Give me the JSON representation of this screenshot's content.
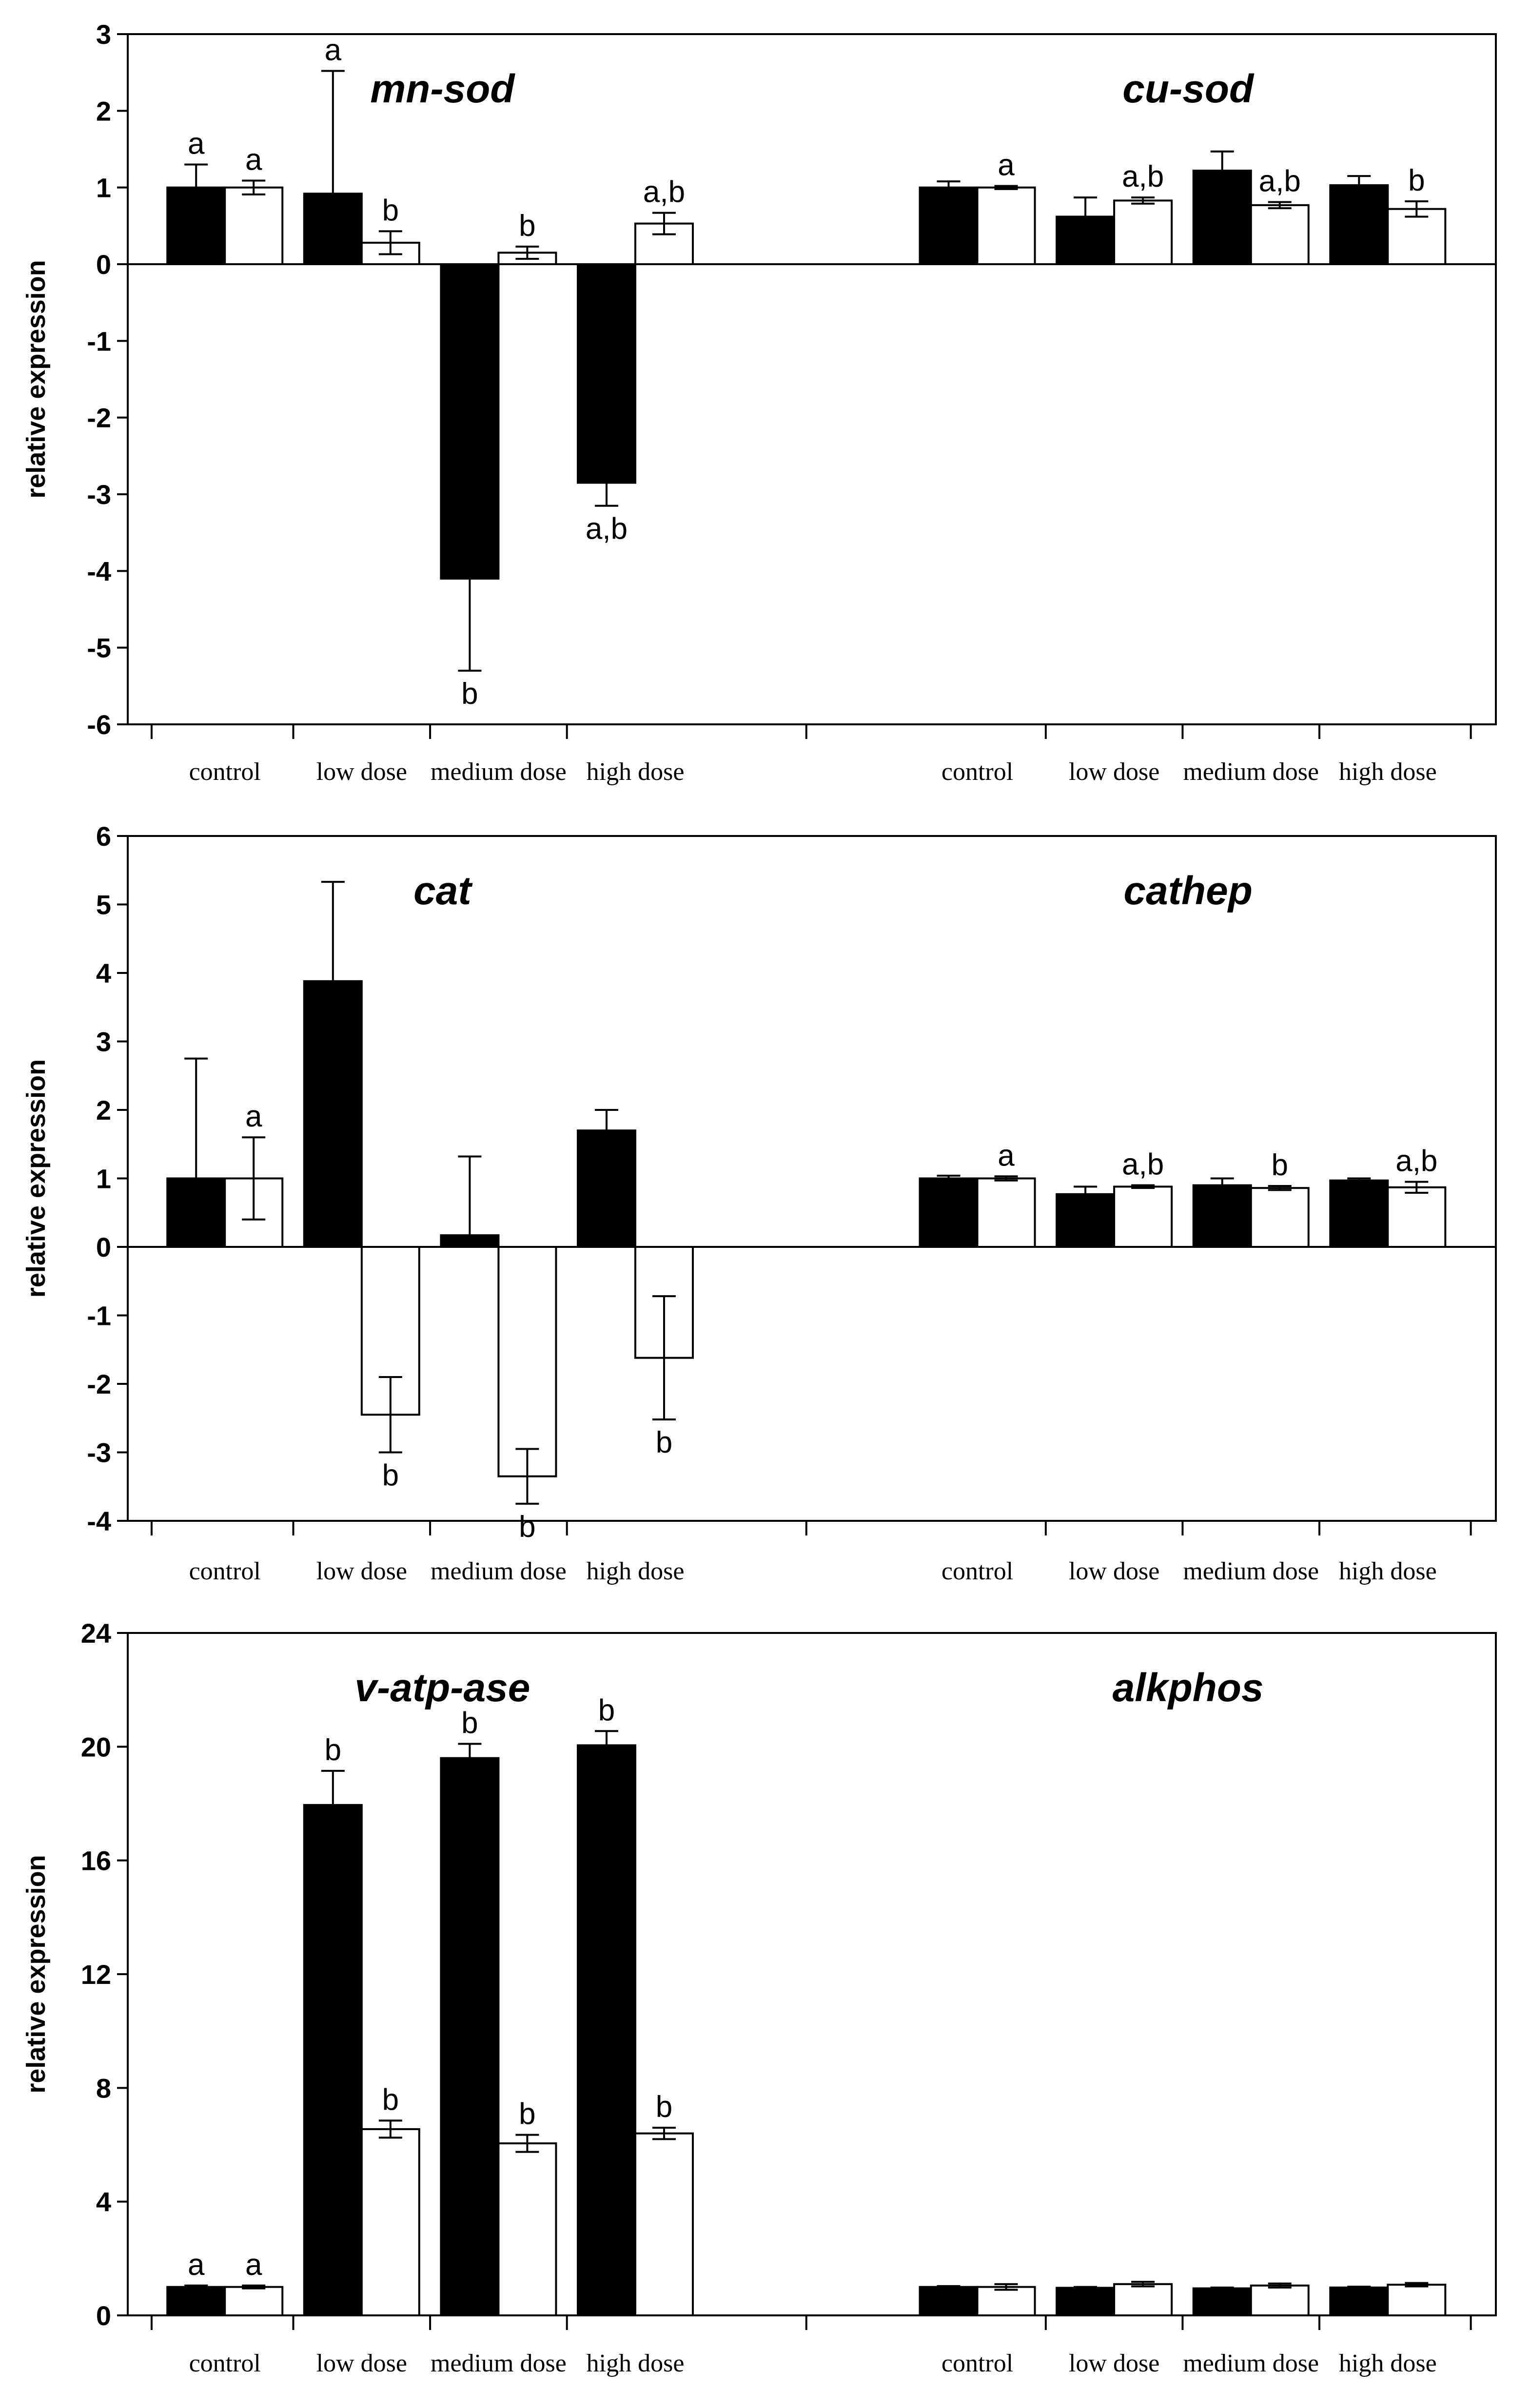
{
  "colors": {
    "filled": "#000000",
    "open": "#ffffff",
    "axis": "#000000",
    "background": "#ffffff"
  },
  "chart_data": [
    {
      "type": "bar",
      "ylabel": "relative expression",
      "ylim": [
        -6,
        3
      ],
      "yticks": [
        3,
        2,
        1,
        0,
        -1,
        -2,
        -3,
        -4,
        -5,
        -6
      ],
      "groups": [
        {
          "gene": "mn-sod",
          "categories": [
            "control",
            "low dose",
            "medium dose",
            "high dose"
          ],
          "series": [
            {
              "name": "filled",
              "values": [
                1.0,
                0.92,
                -4.1,
                -2.85
              ],
              "errors": [
                0.3,
                1.6,
                1.2,
                0.3
              ],
              "labels": [
                "a",
                "a",
                "b",
                "a,b"
              ]
            },
            {
              "name": "open",
              "values": [
                1.0,
                0.28,
                0.15,
                0.53
              ],
              "errors": [
                0.09,
                0.15,
                0.08,
                0.14
              ],
              "labels": [
                "a",
                "b",
                "b",
                "a,b"
              ]
            }
          ]
        },
        {
          "gene": "cu-sod",
          "categories": [
            "control",
            "low dose",
            "medium dose",
            "high dose"
          ],
          "series": [
            {
              "name": "filled",
              "values": [
                1.0,
                0.62,
                1.22,
                1.03
              ],
              "errors": [
                0.08,
                0.25,
                0.25,
                0.12
              ],
              "labels": [
                "",
                "",
                "",
                ""
              ]
            },
            {
              "name": "open",
              "values": [
                1.0,
                0.83,
                0.77,
                0.72
              ],
              "errors": [
                0.02,
                0.04,
                0.04,
                0.1
              ],
              "labels": [
                "a",
                "a,b",
                "a,b",
                "b"
              ]
            }
          ]
        }
      ]
    },
    {
      "type": "bar",
      "ylabel": "relative expression",
      "ylim": [
        -4,
        6
      ],
      "yticks": [
        6,
        5,
        4,
        3,
        2,
        1,
        0,
        -1,
        -2,
        -3,
        -4
      ],
      "groups": [
        {
          "gene": "cat",
          "categories": [
            "control",
            "low dose",
            "medium dose",
            "high dose"
          ],
          "series": [
            {
              "name": "filled",
              "values": [
                1.0,
                3.88,
                0.17,
                1.7
              ],
              "errors": [
                1.75,
                1.45,
                1.15,
                0.3
              ],
              "labels": [
                "",
                "",
                "",
                ""
              ]
            },
            {
              "name": "open",
              "values": [
                1.0,
                -2.45,
                -3.35,
                -1.62
              ],
              "errors": [
                0.6,
                0.55,
                0.4,
                0.9
              ],
              "labels": [
                "a",
                "b",
                "b",
                "b"
              ]
            }
          ]
        },
        {
          "gene": "cathep",
          "categories": [
            "control",
            "low dose",
            "medium dose",
            "high dose"
          ],
          "series": [
            {
              "name": "filled",
              "values": [
                1.0,
                0.77,
                0.9,
                0.97
              ],
              "errors": [
                0.04,
                0.11,
                0.1,
                0.03
              ],
              "labels": [
                "",
                "",
                "",
                ""
              ]
            },
            {
              "name": "open",
              "values": [
                1.0,
                0.88,
                0.86,
                0.87
              ],
              "errors": [
                0.03,
                0.02,
                0.03,
                0.08
              ],
              "labels": [
                "a",
                "a,b",
                "b",
                "a,b"
              ]
            }
          ]
        }
      ]
    },
    {
      "type": "bar",
      "ylabel": "relative expression",
      "ylim": [
        0,
        24
      ],
      "yticks": [
        24,
        20,
        16,
        12,
        8,
        4,
        0
      ],
      "groups": [
        {
          "gene": "v-atp-ase",
          "categories": [
            "control",
            "low dose",
            "medium dose",
            "high dose"
          ],
          "series": [
            {
              "name": "filled",
              "values": [
                1.0,
                17.95,
                19.6,
                20.05
              ],
              "errors": [
                0.05,
                1.2,
                0.5,
                0.5
              ],
              "labels": [
                "a",
                "b",
                "b",
                "b"
              ]
            },
            {
              "name": "open",
              "values": [
                1.0,
                6.55,
                6.05,
                6.4
              ],
              "errors": [
                0.05,
                0.3,
                0.3,
                0.2
              ],
              "labels": [
                "a",
                "b",
                "b",
                "b"
              ]
            }
          ]
        },
        {
          "gene": "alkphos",
          "categories": [
            "control",
            "low dose",
            "medium dose",
            "high dose"
          ],
          "series": [
            {
              "name": "filled",
              "values": [
                1.0,
                0.97,
                0.95,
                0.98
              ],
              "errors": [
                0.03,
                0.03,
                0.03,
                0.03
              ],
              "labels": [
                "",
                "",
                "",
                ""
              ]
            },
            {
              "name": "open",
              "values": [
                1.0,
                1.1,
                1.05,
                1.08
              ],
              "errors": [
                0.1,
                0.08,
                0.07,
                0.06
              ],
              "labels": [
                "",
                "",
                "",
                ""
              ]
            }
          ]
        }
      ]
    }
  ]
}
